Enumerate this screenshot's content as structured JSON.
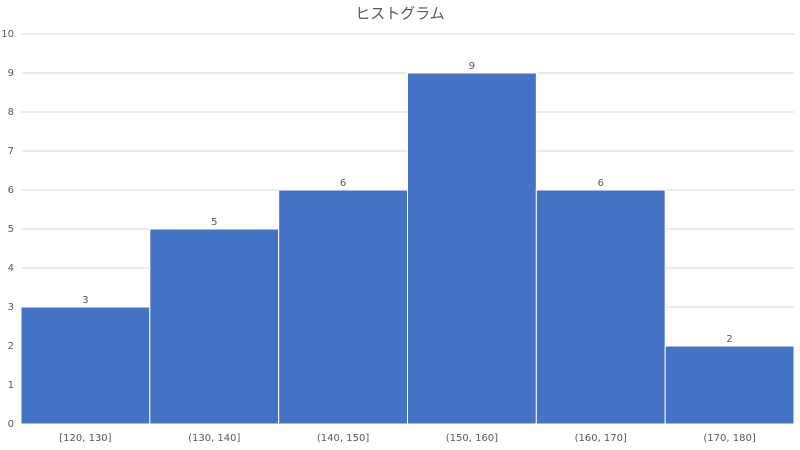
{
  "chart_data": {
    "type": "bar",
    "title": "ヒストグラム",
    "categories": [
      "[120, 130]",
      "(130, 140]",
      "(140, 150]",
      "(150, 160]",
      "(160, 170]",
      "(170, 180]"
    ],
    "values": [
      3,
      5,
      6,
      9,
      6,
      2
    ],
    "color": "#4472c4",
    "ylim": [
      0,
      10
    ],
    "yticks": [
      0,
      1,
      2,
      3,
      4,
      5,
      6,
      7,
      8,
      9,
      10
    ],
    "grid": true
  }
}
